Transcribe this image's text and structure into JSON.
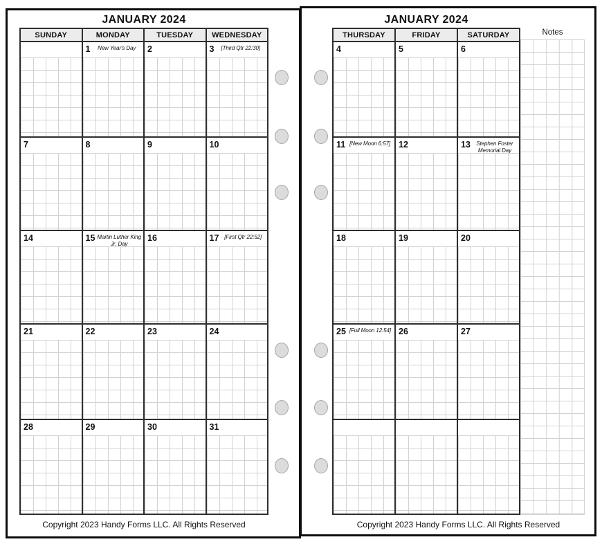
{
  "left_page": {
    "title": "JANUARY 2024",
    "day_headers": [
      "SUNDAY",
      "MONDAY",
      "TUESDAY",
      "WEDNESDAY"
    ],
    "weeks": [
      [
        {
          "date": "",
          "note": ""
        },
        {
          "date": "1",
          "note": "New Year's Day"
        },
        {
          "date": "2",
          "note": ""
        },
        {
          "date": "3",
          "note": "[Third Qtr 22:30]"
        }
      ],
      [
        {
          "date": "7",
          "note": ""
        },
        {
          "date": "8",
          "note": ""
        },
        {
          "date": "9",
          "note": ""
        },
        {
          "date": "10",
          "note": ""
        }
      ],
      [
        {
          "date": "14",
          "note": ""
        },
        {
          "date": "15",
          "note": "Martin Luther King Jr. Day"
        },
        {
          "date": "16",
          "note": ""
        },
        {
          "date": "17",
          "note": "[First Qtr 22:52]"
        }
      ],
      [
        {
          "date": "21",
          "note": ""
        },
        {
          "date": "22",
          "note": ""
        },
        {
          "date": "23",
          "note": ""
        },
        {
          "date": "24",
          "note": ""
        }
      ],
      [
        {
          "date": "28",
          "note": ""
        },
        {
          "date": "29",
          "note": ""
        },
        {
          "date": "30",
          "note": ""
        },
        {
          "date": "31",
          "note": ""
        }
      ]
    ],
    "copyright": "Copyright 2023 Handy Forms LLC. All Rights Reserved"
  },
  "right_page": {
    "title": "JANUARY 2024",
    "day_headers": [
      "THURSDAY",
      "FRIDAY",
      "SATURDAY"
    ],
    "notes_label": "Notes",
    "weeks": [
      [
        {
          "date": "4",
          "note": ""
        },
        {
          "date": "5",
          "note": ""
        },
        {
          "date": "6",
          "note": ""
        }
      ],
      [
        {
          "date": "11",
          "note": "[New Moon 6:57]"
        },
        {
          "date": "12",
          "note": ""
        },
        {
          "date": "13",
          "note": "Stephen Foster Memorial Day"
        }
      ],
      [
        {
          "date": "18",
          "note": ""
        },
        {
          "date": "19",
          "note": ""
        },
        {
          "date": "20",
          "note": ""
        }
      ],
      [
        {
          "date": "25",
          "note": "[Full Moon 12:54]"
        },
        {
          "date": "26",
          "note": ""
        },
        {
          "date": "27",
          "note": ""
        }
      ],
      [
        {
          "date": "",
          "note": ""
        },
        {
          "date": "",
          "note": ""
        },
        {
          "date": "",
          "note": ""
        }
      ]
    ],
    "copyright": "Copyright 2023 Handy Forms LLC. All Rights Reserved"
  },
  "colors": {
    "page_border": "#0d0d0d",
    "grid_heavy": "#2e2e2e",
    "grid_fine": "#d2d2d2",
    "header_bg": "#ececec",
    "hole_fill": "#dcdcdc",
    "hole_border": "#a6a6a6"
  }
}
